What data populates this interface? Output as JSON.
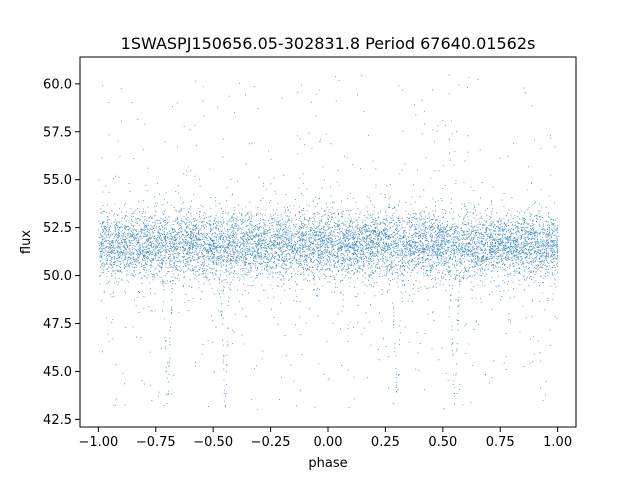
{
  "chart_data": {
    "type": "scatter",
    "title": "1SWASPJ150656.05-302831.8 Period 67640.01562s",
    "xlabel": "phase",
    "ylabel": "flux",
    "xlim": [
      -1.08,
      1.08
    ],
    "ylim": [
      42.1,
      61.4
    ],
    "xticks": [
      -1.0,
      -0.75,
      -0.5,
      -0.25,
      0.0,
      0.25,
      0.5,
      0.75,
      1.0
    ],
    "xtick_labels": [
      "−1.00",
      "−0.75",
      "−0.50",
      "−0.25",
      "0.00",
      "0.25",
      "0.50",
      "0.75",
      "1.00"
    ],
    "yticks": [
      42.5,
      45.0,
      47.5,
      50.0,
      52.5,
      55.0,
      57.5,
      60.0
    ],
    "ytick_labels": [
      "42.5",
      "45.0",
      "47.5",
      "50.0",
      "52.5",
      "55.0",
      "57.5",
      "60.0"
    ],
    "grid": false,
    "series": [
      {
        "color": "#1f77b4",
        "baseline_flux": 51.6,
        "baseline_spread": 1.6,
        "phase_range": [
          -1.0,
          1.0
        ],
        "eclipse_minima": [
          {
            "phase": -0.7,
            "depth_flux": 43.1
          },
          {
            "phase": -0.45,
            "depth_flux": 43.1
          },
          {
            "phase": 0.3,
            "depth_flux": 43.1
          },
          {
            "phase": 0.55,
            "depth_flux": 43.1
          }
        ],
        "flux_range": [
          43.0,
          60.5
        ]
      }
    ]
  }
}
